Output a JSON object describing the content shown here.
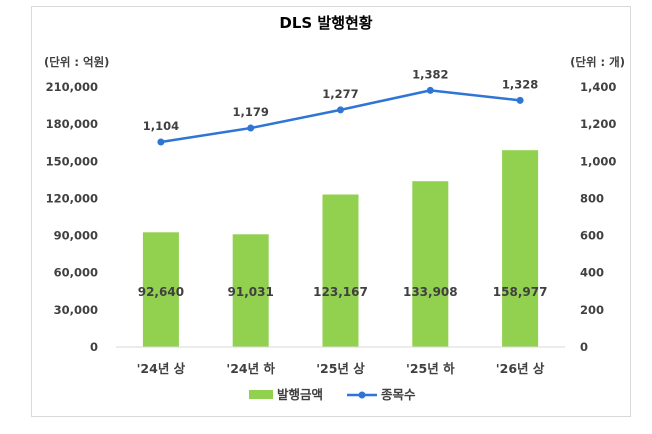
{
  "chart_data": {
    "type": "bar",
    "title": "DLS  발행현황",
    "left_unit": "(단위 : 억원)",
    "right_unit": "(단위 : 개)",
    "categories": [
      "'24년 상",
      "'24년 하",
      "'25년 상",
      "'25년 하",
      "'26년 상"
    ],
    "series": [
      {
        "name": "발행금액",
        "type": "bar",
        "axis": "left",
        "values": [
          92640,
          91031,
          123167,
          133908,
          158977
        ],
        "labels": [
          "92,640",
          "91,031",
          "123,167",
          "133,908",
          "158,977"
        ],
        "color": "#92d050"
      },
      {
        "name": "종목수",
        "type": "line",
        "axis": "right",
        "values": [
          1104,
          1179,
          1277,
          1382,
          1328
        ],
        "labels": [
          "1,104",
          "1,179",
          "1,277",
          "1,382",
          "1,328"
        ],
        "color": "#2e75d6"
      }
    ],
    "left_axis": {
      "ylim": [
        0,
        210000
      ],
      "ticks": [
        0,
        30000,
        60000,
        90000,
        120000,
        150000,
        180000,
        210000
      ],
      "tick_labels": [
        "0",
        "30,000",
        "60,000",
        "90,000",
        "120,000",
        "150,000",
        "180,000",
        "210,000"
      ]
    },
    "right_axis": {
      "ylim": [
        0,
        1400
      ],
      "ticks": [
        0,
        200,
        400,
        600,
        800,
        1000,
        1200,
        1400
      ],
      "tick_labels": [
        "0",
        "200",
        "400",
        "600",
        "800",
        "1,000",
        "1,200",
        "1,400"
      ]
    },
    "grid": false,
    "legend": "bottom"
  }
}
